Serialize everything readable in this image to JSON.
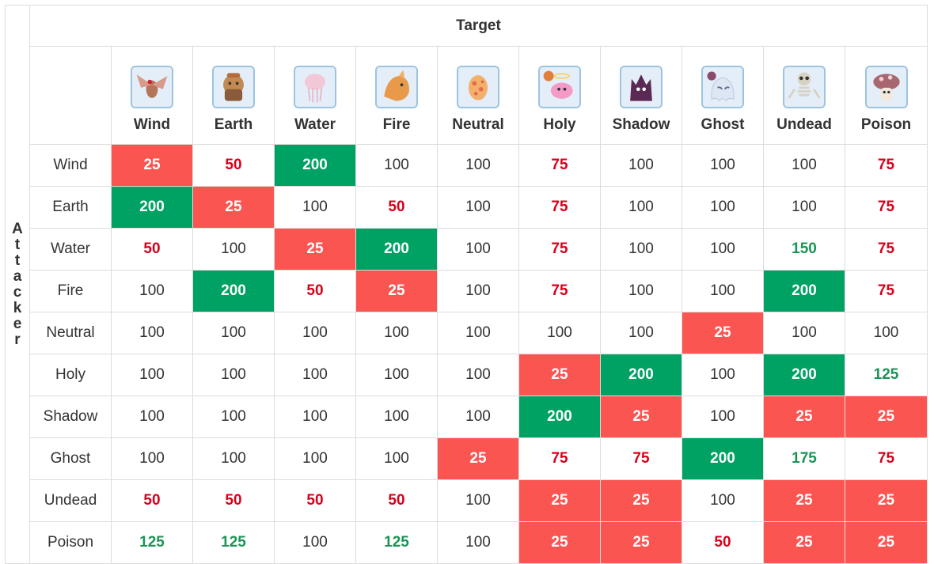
{
  "header": {
    "target_label": "Target",
    "attacker_label": "Attacker"
  },
  "columns": [
    {
      "label": "Wind",
      "icon": "wind-monster-icon",
      "bg": "#e3eef8",
      "fg": "#b4745a"
    },
    {
      "label": "Earth",
      "icon": "earth-monster-icon",
      "bg": "#e3eef8",
      "fg": "#c28a52"
    },
    {
      "label": "Water",
      "icon": "water-monster-icon",
      "bg": "#e3eef8",
      "fg": "#f2c8d8"
    },
    {
      "label": "Fire",
      "icon": "fire-monster-icon",
      "bg": "#e3eef8",
      "fg": "#e89a4a"
    },
    {
      "label": "Neutral",
      "icon": "neutral-monster-icon",
      "bg": "#e3eef8",
      "fg": "#f3b06a"
    },
    {
      "label": "Holy",
      "icon": "holy-monster-icon",
      "bg": "#e3eef8",
      "fg": "#f59ac8"
    },
    {
      "label": "Shadow",
      "icon": "shadow-monster-icon",
      "bg": "#e3eef8",
      "fg": "#5a2a55"
    },
    {
      "label": "Ghost",
      "icon": "ghost-monster-icon",
      "bg": "#e3eef8",
      "fg": "#dfe6f3"
    },
    {
      "label": "Undead",
      "icon": "undead-monster-icon",
      "bg": "#e3eef8",
      "fg": "#d9d2c4"
    },
    {
      "label": "Poison",
      "icon": "poison-monster-icon",
      "bg": "#e3eef8",
      "fg": "#a86670"
    }
  ],
  "rows": [
    {
      "label": "Wind",
      "values": [
        "25",
        "50",
        "200",
        "100",
        "100",
        "75",
        "100",
        "100",
        "100",
        "75"
      ],
      "styles": [
        "red",
        "redtext",
        "green",
        "plain",
        "plain",
        "redtext",
        "plain",
        "plain",
        "plain",
        "redtext"
      ]
    },
    {
      "label": "Earth",
      "values": [
        "200",
        "25",
        "100",
        "50",
        "100",
        "75",
        "100",
        "100",
        "100",
        "75"
      ],
      "styles": [
        "green",
        "red",
        "plain",
        "redtext",
        "plain",
        "redtext",
        "plain",
        "plain",
        "plain",
        "redtext"
      ]
    },
    {
      "label": "Water",
      "values": [
        "50",
        "100",
        "25",
        "200",
        "100",
        "75",
        "100",
        "100",
        "150",
        "75"
      ],
      "styles": [
        "redtext",
        "plain",
        "red",
        "green",
        "plain",
        "redtext",
        "plain",
        "plain",
        "greentext",
        "redtext"
      ]
    },
    {
      "label": "Fire",
      "values": [
        "100",
        "200",
        "50",
        "25",
        "100",
        "75",
        "100",
        "100",
        "200",
        "75"
      ],
      "styles": [
        "plain",
        "green",
        "redtext",
        "red",
        "plain",
        "redtext",
        "plain",
        "plain",
        "green",
        "redtext"
      ]
    },
    {
      "label": "Neutral",
      "values": [
        "100",
        "100",
        "100",
        "100",
        "100",
        "100",
        "100",
        "25",
        "100",
        "100"
      ],
      "styles": [
        "plain",
        "plain",
        "plain",
        "plain",
        "plain",
        "plain",
        "plain",
        "red",
        "plain",
        "plain"
      ]
    },
    {
      "label": "Holy",
      "values": [
        "100",
        "100",
        "100",
        "100",
        "100",
        "25",
        "200",
        "100",
        "200",
        "125"
      ],
      "styles": [
        "plain",
        "plain",
        "plain",
        "plain",
        "plain",
        "red",
        "green",
        "plain",
        "green",
        "greentext"
      ]
    },
    {
      "label": "Shadow",
      "values": [
        "100",
        "100",
        "100",
        "100",
        "100",
        "200",
        "25",
        "100",
        "25",
        "25"
      ],
      "styles": [
        "plain",
        "plain",
        "plain",
        "plain",
        "plain",
        "green",
        "red",
        "plain",
        "red",
        "red"
      ]
    },
    {
      "label": "Ghost",
      "values": [
        "100",
        "100",
        "100",
        "100",
        "25",
        "75",
        "75",
        "200",
        "175",
        "75"
      ],
      "styles": [
        "plain",
        "plain",
        "plain",
        "plain",
        "red",
        "redtext",
        "redtext",
        "green",
        "greentext",
        "redtext"
      ]
    },
    {
      "label": "Undead",
      "values": [
        "50",
        "50",
        "50",
        "50",
        "100",
        "25",
        "25",
        "100",
        "25",
        "25"
      ],
      "styles": [
        "redtext",
        "redtext",
        "redtext",
        "redtext",
        "plain",
        "red",
        "red",
        "plain",
        "red",
        "red"
      ]
    },
    {
      "label": "Poison",
      "values": [
        "125",
        "125",
        "100",
        "125",
        "100",
        "25",
        "25",
        "50",
        "25",
        "25"
      ],
      "styles": [
        "greentext",
        "greentext",
        "plain",
        "greentext",
        "plain",
        "red",
        "red",
        "redtext",
        "red",
        "red"
      ]
    }
  ],
  "colors": {
    "red_cell": "#fb5552",
    "green_cell": "#00a263",
    "red_text": "#d9001b",
    "green_text": "#1a9556"
  }
}
